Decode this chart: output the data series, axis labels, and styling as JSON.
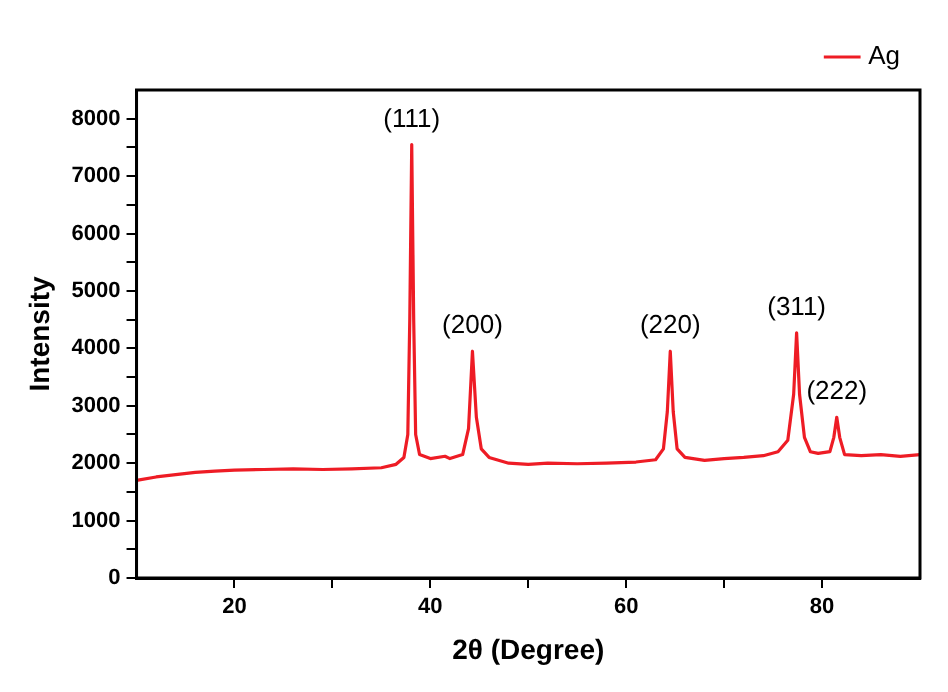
{
  "chart_data": {
    "type": "line",
    "xlabel": "2θ (Degree)",
    "ylabel": "Intensity",
    "x": [
      10,
      12,
      14,
      16,
      18,
      20,
      23,
      26,
      29,
      32,
      35,
      36.5,
      37.3,
      37.7,
      37.9,
      38.1,
      38.3,
      38.5,
      38.9,
      40,
      41.5,
      42,
      43.3,
      43.9,
      44.3,
      44.7,
      45.2,
      46,
      48,
      50,
      52,
      55,
      58,
      61,
      63,
      63.8,
      64.2,
      64.5,
      64.8,
      65.2,
      66,
      68,
      70,
      72,
      74,
      75.5,
      76.5,
      77.1,
      77.4,
      77.7,
      78.2,
      78.8,
      79.6,
      80.8,
      81.2,
      81.5,
      81.8,
      82.3,
      84,
      86,
      88,
      90
    ],
    "series": [
      {
        "name": "Ag",
        "color": "#ee1c25",
        "values": [
          1700,
          1760,
          1800,
          1840,
          1860,
          1880,
          1890,
          1900,
          1890,
          1900,
          1920,
          1980,
          2100,
          2500,
          4500,
          7550,
          4500,
          2500,
          2150,
          2080,
          2120,
          2080,
          2150,
          2600,
          3950,
          2800,
          2250,
          2100,
          2000,
          1980,
          2000,
          1990,
          2000,
          2020,
          2060,
          2250,
          2900,
          3950,
          2900,
          2250,
          2100,
          2050,
          2080,
          2100,
          2130,
          2200,
          2400,
          3200,
          4270,
          3200,
          2450,
          2200,
          2170,
          2200,
          2450,
          2800,
          2450,
          2150,
          2130,
          2150,
          2120,
          2150
        ]
      }
    ],
    "xlim": [
      10,
      90
    ],
    "xticks": [
      20,
      {
        "value": 30,
        "label": null
      },
      40,
      {
        "value": 50,
        "label": null
      },
      60,
      {
        "value": 70,
        "label": null
      },
      80
    ],
    "ylim": [
      0,
      8500
    ],
    "yticks": [
      0,
      {
        "value": 500,
        "label": null
      },
      1000,
      {
        "value": 1500,
        "label": null
      },
      2000,
      {
        "value": 2500,
        "label": null
      },
      3000,
      {
        "value": 3500,
        "label": null
      },
      4000,
      {
        "value": 4500,
        "label": null
      },
      5000,
      {
        "value": 5500,
        "label": null
      },
      6000,
      {
        "value": 6500,
        "label": null
      },
      7000,
      {
        "value": 7500,
        "label": null
      },
      8000
    ],
    "annotations": [
      {
        "text": "(111)",
        "x": 38.1,
        "y": 7550
      },
      {
        "text": "(200)",
        "x": 44.3,
        "y": 3950
      },
      {
        "text": "(220)",
        "x": 64.5,
        "y": 3950
      },
      {
        "text": "(311)",
        "x": 77.4,
        "y": 4270
      },
      {
        "text": "(222)",
        "x": 81.5,
        "y": 2800
      }
    ],
    "grid": false,
    "legend": "top right",
    "marker": "none",
    "line_style": "solid"
  }
}
